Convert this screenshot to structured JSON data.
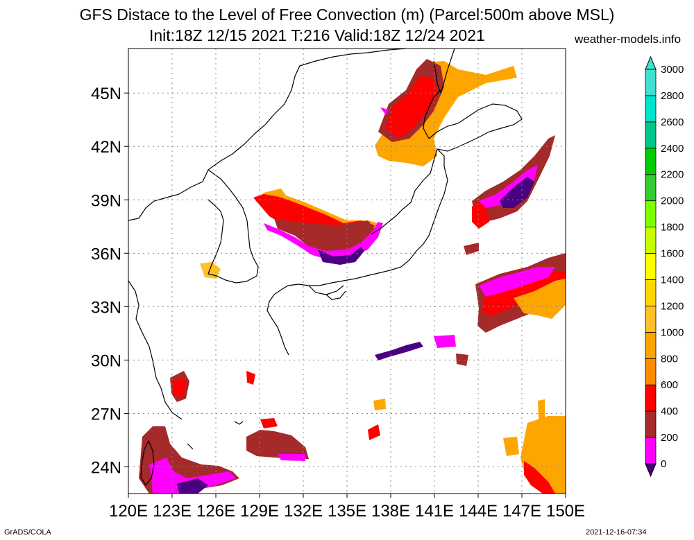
{
  "title": {
    "line1": "GFS Distace to the Level of Free Convection (m) (Parcel:500m above MSL)",
    "line2": "Init:18Z 12/15 2021 T:216 Valid:18Z 12/24 2021",
    "site": "weather-models.info"
  },
  "footer": {
    "left": "GrADS/COLA",
    "right": "2021-12-16-07:34"
  },
  "axes": {
    "lat_labels": [
      "45N",
      "42N",
      "39N",
      "36N",
      "33N",
      "30N",
      "27N",
      "24N"
    ],
    "lat_values": [
      45,
      42,
      39,
      36,
      33,
      30,
      27,
      24
    ],
    "lon_labels": [
      "120E",
      "123E",
      "126E",
      "129E",
      "132E",
      "135E",
      "138E",
      "141E",
      "144E",
      "147E",
      "150E"
    ],
    "lon_values": [
      120,
      123,
      126,
      129,
      132,
      135,
      138,
      141,
      144,
      147,
      150
    ],
    "lat_range": [
      22.5,
      47.5
    ],
    "lon_range": [
      120,
      150
    ]
  },
  "legend": {
    "levels": [
      "0",
      "200",
      "400",
      "600",
      "800",
      "1000",
      "1200",
      "1400",
      "1600",
      "1800",
      "2000",
      "2200",
      "2400",
      "2600",
      "2800",
      "3000"
    ],
    "colors": [
      "#4b0082",
      "#ff00ff",
      "#a52a2a",
      "#ff0000",
      "#ff8c00",
      "#ffa500",
      "#ffc125",
      "#ffd700",
      "#ffff00",
      "#c8ff00",
      "#7fff00",
      "#32cd32",
      "#00cd00",
      "#00c78c",
      "#00e5cc",
      "#40e0d0"
    ]
  },
  "colors": {
    "purple": "#4b0082",
    "magenta": "#ff00ff",
    "brown": "#a52a2a",
    "red": "#ff0000",
    "orange": "#ffa500",
    "gold": "#ffc125"
  }
}
